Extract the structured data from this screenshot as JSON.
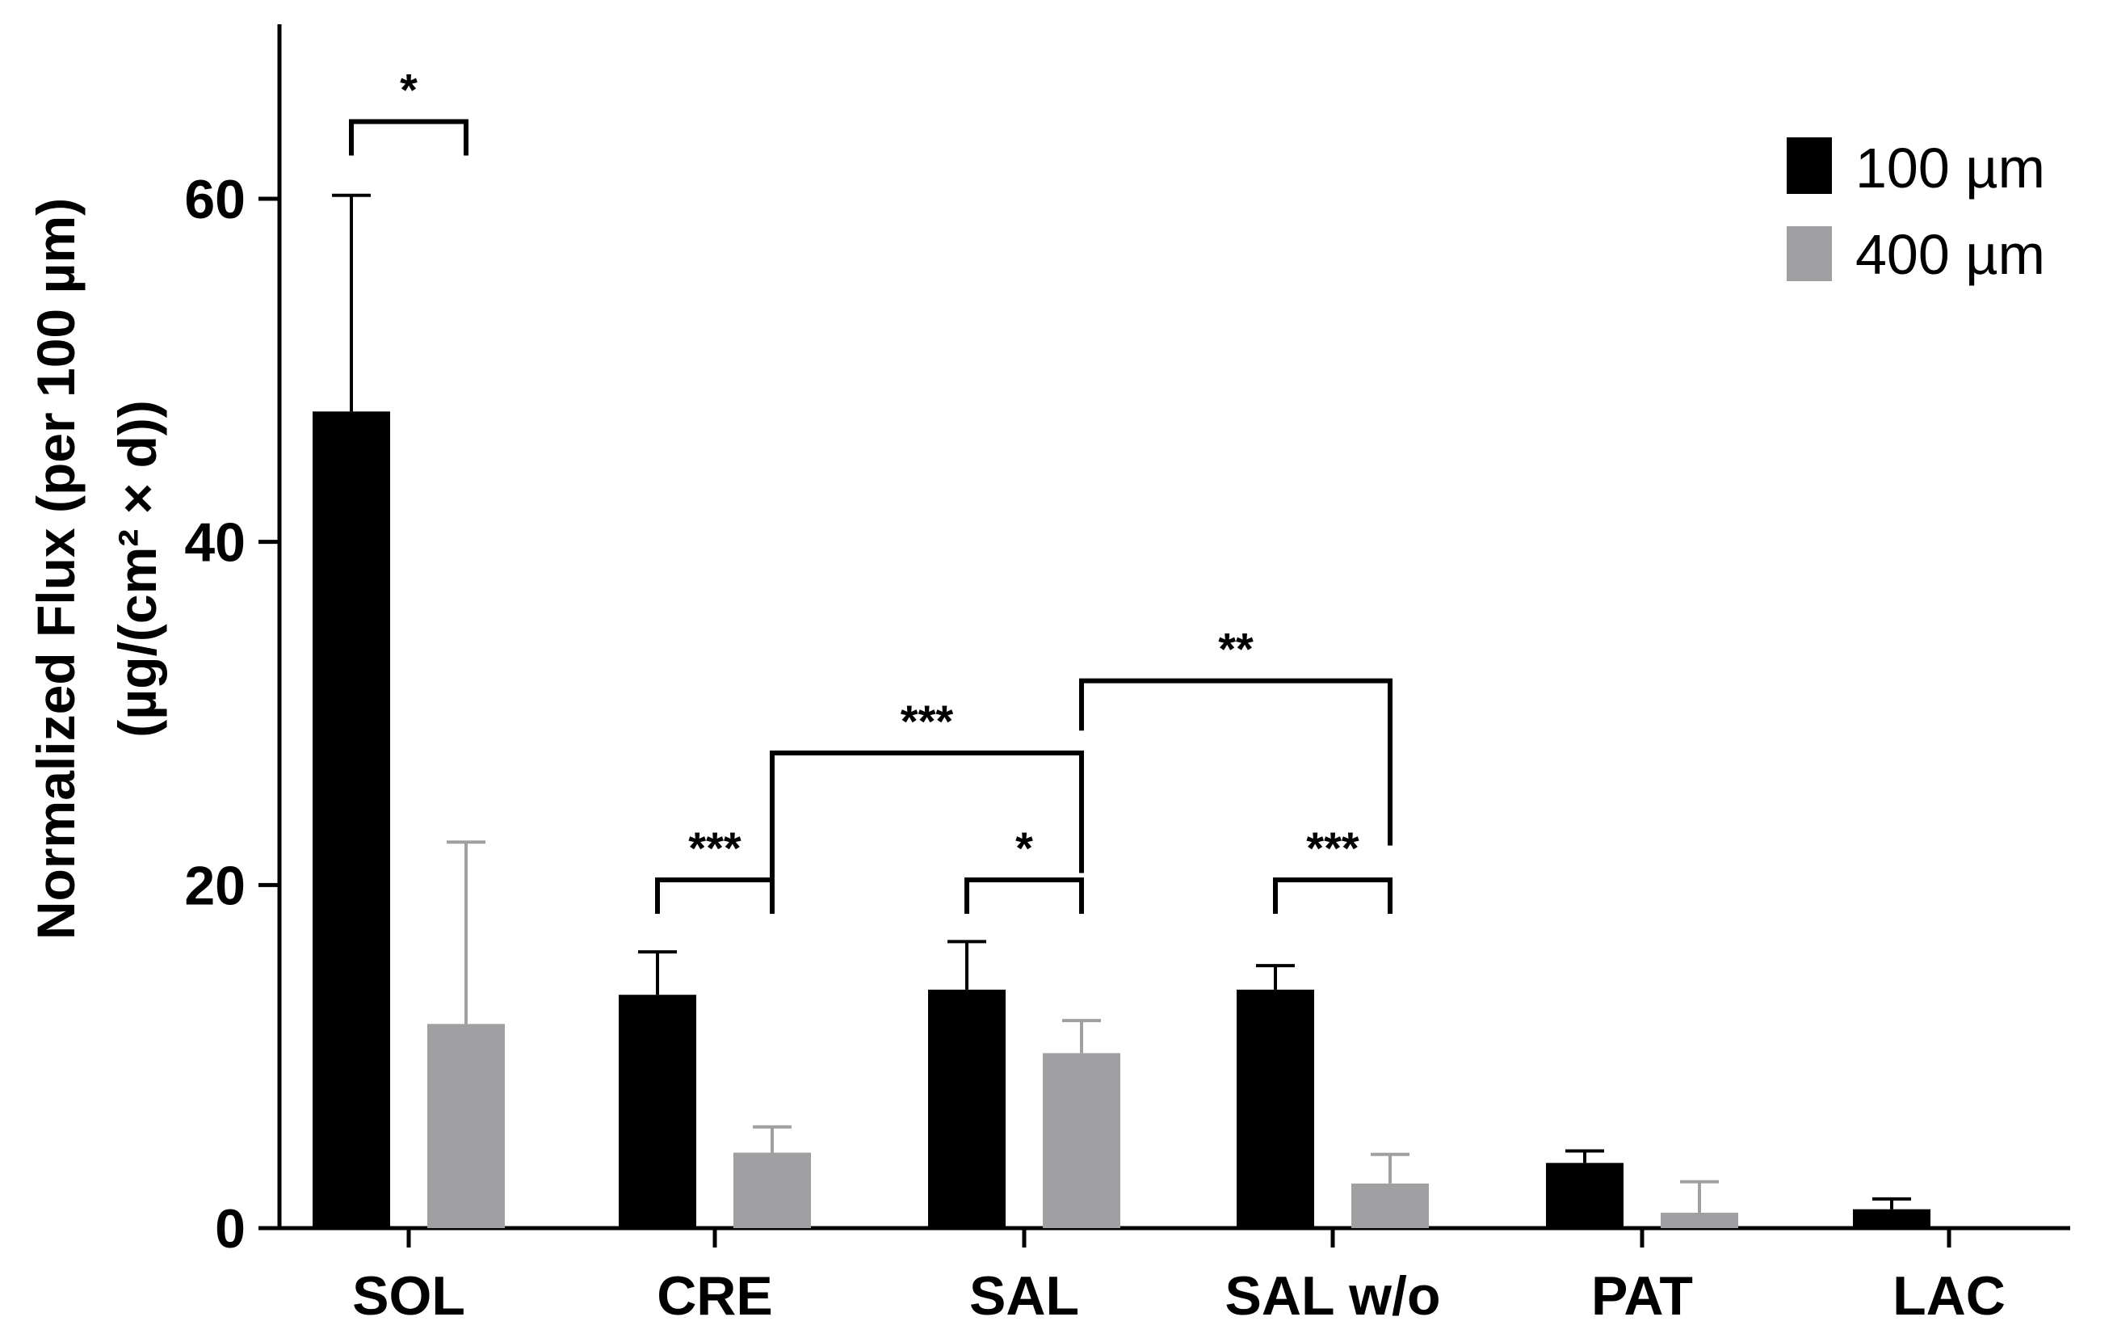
{
  "chart_data": {
    "type": "bar",
    "title": "",
    "xlabel": "",
    "ylabel": "Normalized Flux (per 100 µm)",
    "ylabel_line2": "(µg/(cm² × d))",
    "ylim": [
      0,
      70
    ],
    "yticks": [
      0,
      20,
      40,
      60
    ],
    "ytick_labels": [
      "0",
      "20",
      "40",
      "60"
    ],
    "categories": [
      "SOL",
      "CRE",
      "SAL",
      "SAL w/o",
      "PAT",
      "LAC"
    ],
    "series": [
      {
        "name": "100 µm",
        "color": "#000000",
        "values": [
          47.6,
          13.6,
          13.9,
          13.9,
          3.8,
          1.1
        ],
        "errors": [
          12.6,
          2.5,
          2.8,
          1.4,
          0.7,
          0.6
        ]
      },
      {
        "name": "400 µm",
        "color": "#a0a0a3",
        "values": [
          11.9,
          4.4,
          10.2,
          2.6,
          0.9,
          0.0
        ],
        "errors": [
          10.6,
          1.5,
          1.9,
          1.7,
          1.8,
          0.0
        ]
      }
    ],
    "significance": [
      {
        "type": "pair",
        "category": 0,
        "label": "*",
        "level": 64.5
      },
      {
        "type": "pair",
        "category": 1,
        "label": "***",
        "level": 20.3
      },
      {
        "type": "pair",
        "category": 2,
        "label": "*",
        "level": 20.3
      },
      {
        "type": "pair",
        "category": 3,
        "label": "***",
        "level": 20.3
      },
      {
        "type": "span",
        "from": [
          1,
          1
        ],
        "to": [
          2,
          1
        ],
        "label": "***",
        "level": 27.7,
        "left_bottom": 20.3,
        "right_bottom": 20.7
      },
      {
        "type": "span",
        "from": [
          2,
          1
        ],
        "to": [
          3,
          1
        ],
        "label": "**",
        "level": 31.9,
        "left_bottom": 29.0,
        "right_bottom": 22.3
      }
    ],
    "legend": {
      "position": "top-right",
      "entries": [
        "100 µm",
        "400 µm"
      ]
    }
  }
}
